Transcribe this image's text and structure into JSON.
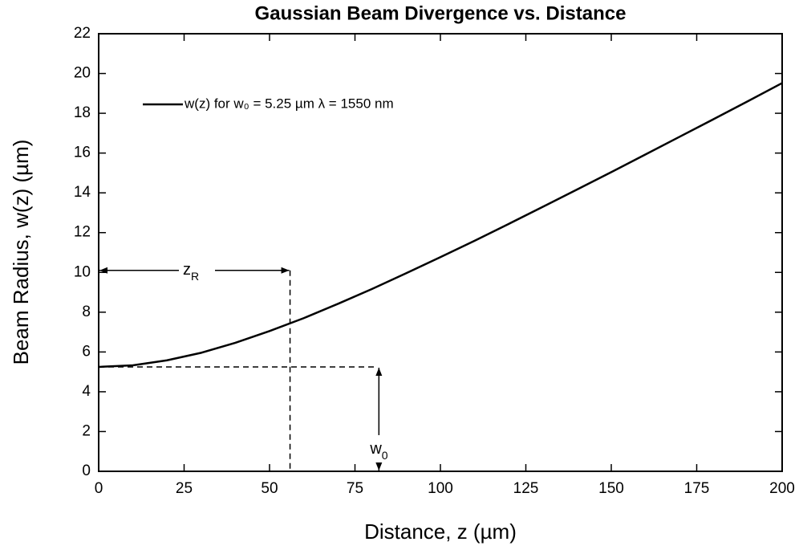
{
  "chart_data": {
    "type": "line",
    "title": "Gaussian Beam Divergence vs. Distance",
    "x_label": "Distance, z (µm)",
    "y_label": "Beam Radius, w(z) (µm)",
    "x": [
      0,
      10,
      20,
      30,
      40,
      50,
      60,
      70,
      80,
      90,
      100,
      110,
      120,
      130,
      140,
      150,
      160,
      170,
      180,
      190,
      200
    ],
    "series": [
      {
        "name": "w(z) for w₀ = 5.25 µm λ = 1550 nm",
        "color": "#000000",
        "values": [
          5.25,
          5.33,
          5.58,
          5.96,
          6.46,
          7.05,
          7.7,
          8.42,
          9.17,
          9.96,
          10.77,
          11.59,
          12.44,
          13.3,
          14.17,
          15.04,
          15.93,
          16.82,
          17.71,
          18.61,
          19.52
        ]
      }
    ],
    "xlim": [
      0,
      200
    ],
    "xticks": [
      0,
      25,
      50,
      75,
      100,
      125,
      150,
      175,
      200
    ],
    "ylim": [
      0,
      22
    ],
    "yticks": [
      0,
      2,
      4,
      6,
      8,
      10,
      12,
      14,
      16,
      18,
      20,
      22
    ],
    "annotations": {
      "rayleigh": {
        "text": "z",
        "sub": "R",
        "x": 56,
        "y": 10.1
      },
      "waist": {
        "text": "w",
        "sub": "0",
        "x": 82,
        "y": 5.25
      }
    }
  }
}
